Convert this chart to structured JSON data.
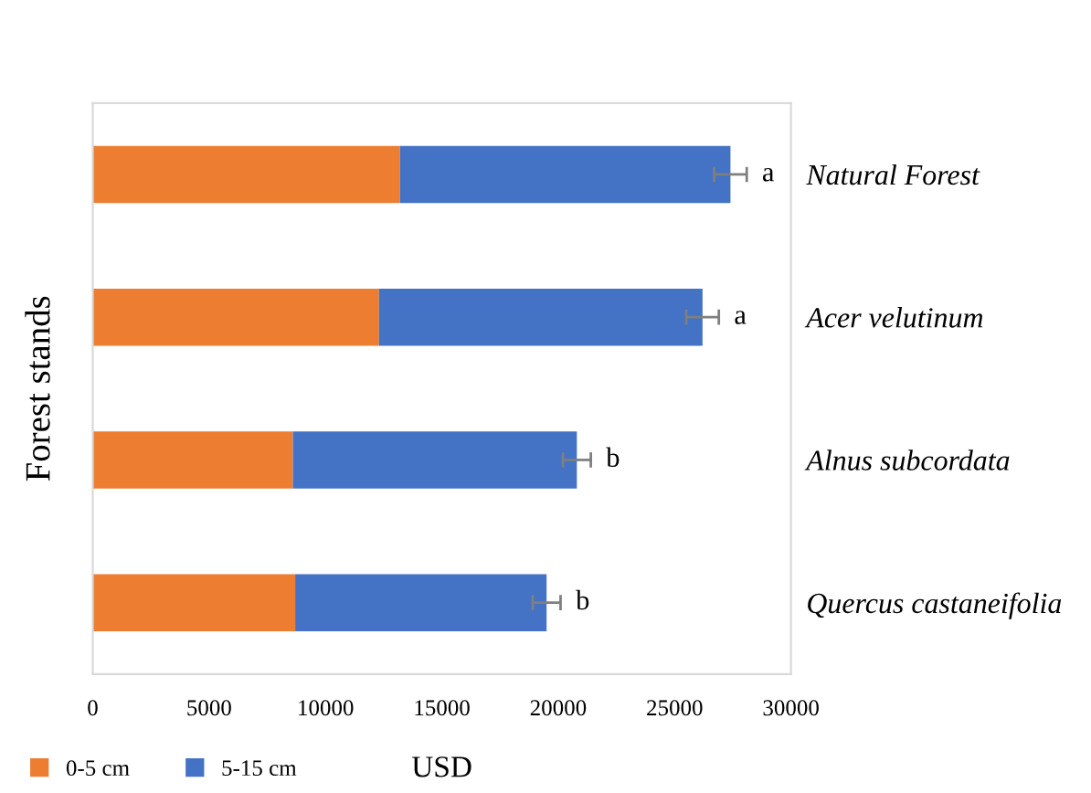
{
  "chart_data": {
    "type": "bar",
    "orientation": "horizontal",
    "stacked": true,
    "xlabel": "USD",
    "ylabel": "Forest stands",
    "categories": [
      "Natural Forest",
      "Acer velutinum",
      "Alnus subcordata",
      "Quercus castaneifolia"
    ],
    "series": [
      {
        "name": "0-5 cm",
        "color": "#ed7d31",
        "values": [
          13200,
          12300,
          8600,
          8700
        ]
      },
      {
        "name": "5-15 cm",
        "color": "#4472c4",
        "values": [
          14200,
          13900,
          12200,
          10800
        ],
        "errors": [
          700,
          700,
          600,
          600
        ]
      }
    ],
    "xlim": [
      0,
      30000
    ],
    "xticks": [
      0,
      5000,
      10000,
      15000,
      20000,
      25000,
      30000
    ],
    "annotations": [
      {
        "text": "a",
        "x": 27400,
        "y": "Natural Forest"
      },
      {
        "text": "a",
        "x": 26200,
        "y": "Acer velutinum"
      },
      {
        "text": "b",
        "x": 20800,
        "y": "Alnus subcordata"
      },
      {
        "text": "b",
        "x": 19500,
        "y": "Quercus castaneifolia"
      }
    ],
    "grid": false,
    "legend": "bottom left"
  }
}
